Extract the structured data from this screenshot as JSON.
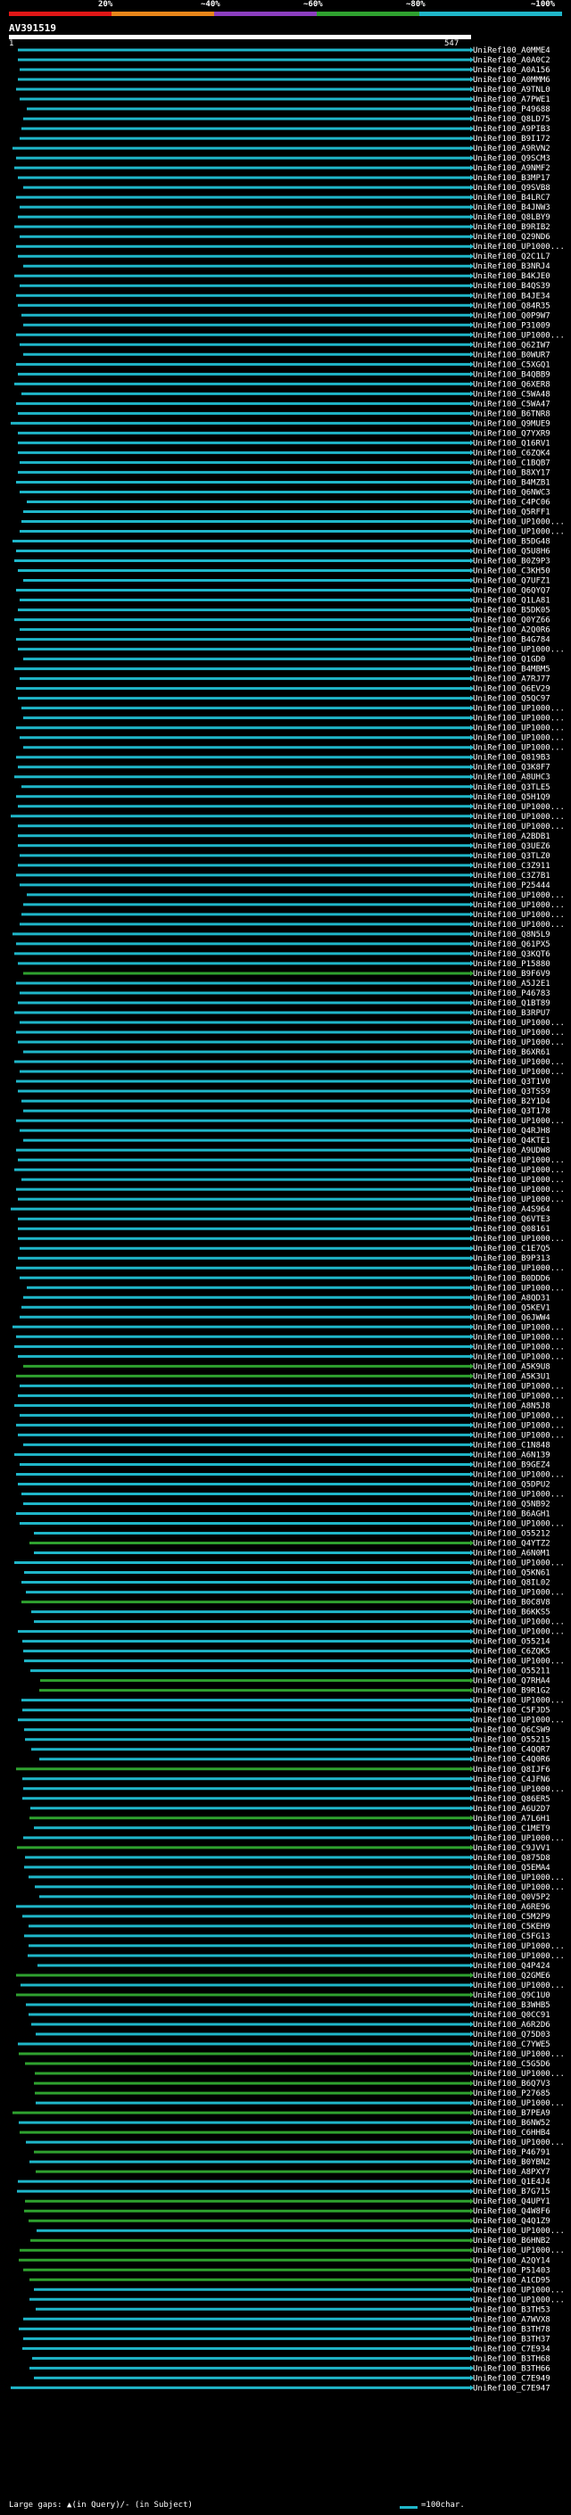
{
  "legend": {
    "labels": [
      "20%",
      "~40%",
      "~60%",
      "~80%",
      "~100%"
    ],
    "colors": [
      "#e01717",
      "#e8861a",
      "#8c3fbf",
      "#2fa12f",
      "#1fb6c9"
    ]
  },
  "query": {
    "id": "AV391519",
    "start": "1",
    "end": "547"
  },
  "footer": {
    "gap_note": "Large gaps: ▲(in Query)/- (in Subject)",
    "scale_text": "=100char."
  },
  "hits": [
    {
      "label": "UniRef100_A0MME4",
      "color": "#1fb6c9"
    },
    {
      "label": "UniRef100_A0A0C2",
      "color": "#1fb6c9"
    },
    {
      "label": "UniRef100_A0A156",
      "color": "#1fb6c9"
    },
    {
      "label": "UniRef100_A0MMM6",
      "color": "#1fb6c9"
    },
    {
      "label": "UniRef100_A9TNL0",
      "color": "#1fb6c9"
    },
    {
      "label": "UniRef100_A7PWE1",
      "color": "#1fb6c9"
    },
    {
      "label": "UniRef100_P49688",
      "color": "#1fb6c9"
    },
    {
      "label": "UniRef100_Q8LD75",
      "color": "#1fb6c9"
    },
    {
      "label": "UniRef100_A9PIB3",
      "color": "#1fb6c9"
    },
    {
      "label": "UniRef100_B9I172",
      "color": "#1fb6c9"
    },
    {
      "label": "UniRef100_A9RVN2",
      "color": "#1fb6c9"
    },
    {
      "label": "UniRef100_Q9SCM3",
      "color": "#1fb6c9"
    },
    {
      "label": "UniRef100_A9NMF2",
      "color": "#1fb6c9"
    },
    {
      "label": "UniRef100_B3MP17",
      "color": "#1fb6c9"
    },
    {
      "label": "UniRef100_Q9SVB8",
      "color": "#1fb6c9"
    },
    {
      "label": "UniRef100_B4LRC7",
      "color": "#1fb6c9"
    },
    {
      "label": "UniRef100_B4JNW3",
      "color": "#1fb6c9"
    },
    {
      "label": "UniRef100_Q8LBY9",
      "color": "#1fb6c9"
    },
    {
      "label": "UniRef100_B9RIB2",
      "color": "#1fb6c9"
    },
    {
      "label": "UniRef100_Q29ND6",
      "color": "#1fb6c9"
    },
    {
      "label": "UniRef100_UP1000...",
      "color": "#1fb6c9"
    },
    {
      "label": "UniRef100_Q2C1L7",
      "color": "#1fb6c9"
    },
    {
      "label": "UniRef100_B3NRJ4",
      "color": "#1fb6c9"
    },
    {
      "label": "UniRef100_B4KJE0",
      "color": "#1fb6c9"
    },
    {
      "label": "UniRef100_B4QS39",
      "color": "#1fb6c9"
    },
    {
      "label": "UniRef100_B4JE34",
      "color": "#1fb6c9"
    },
    {
      "label": "UniRef100_Q84R35",
      "color": "#1fb6c9"
    },
    {
      "label": "UniRef100_Q0P9W7",
      "color": "#1fb6c9"
    },
    {
      "label": "UniRef100_P31009",
      "color": "#1fb6c9"
    },
    {
      "label": "UniRef100_UP1000...",
      "color": "#1fb6c9"
    },
    {
      "label": "UniRef100_Q62IW7",
      "color": "#1fb6c9"
    },
    {
      "label": "UniRef100_B0WUR7",
      "color": "#1fb6c9"
    },
    {
      "label": "UniRef100_C5XGQ1",
      "color": "#1fb6c9"
    },
    {
      "label": "UniRef100_B4QBB9",
      "color": "#1fb6c9"
    },
    {
      "label": "UniRef100_Q6XER8",
      "color": "#1fb6c9"
    },
    {
      "label": "UniRef100_C5WA48",
      "color": "#1fb6c9"
    },
    {
      "label": "UniRef100_C5WA47",
      "color": "#1fb6c9"
    },
    {
      "label": "UniRef100_B6TNR8",
      "color": "#1fb6c9"
    },
    {
      "label": "UniRef100_Q9MUE9",
      "color": "#1fb6c9"
    },
    {
      "label": "UniRef100_Q7YXR9",
      "color": "#1fb6c9"
    },
    {
      "label": "UniRef100_Q16RV1",
      "color": "#1fb6c9"
    },
    {
      "label": "UniRef100_C6ZQK4",
      "color": "#1fb6c9"
    },
    {
      "label": "UniRef100_C1BQB7",
      "color": "#1fb6c9"
    },
    {
      "label": "UniRef100_B8XY17",
      "color": "#1fb6c9"
    },
    {
      "label": "UniRef100_B4MZB1",
      "color": "#1fb6c9"
    },
    {
      "label": "UniRef100_Q6NWC3",
      "color": "#1fb6c9"
    },
    {
      "label": "UniRef100_C4PC06",
      "color": "#1fb6c9"
    },
    {
      "label": "UniRef100_Q5RFF1",
      "color": "#1fb6c9"
    },
    {
      "label": "UniRef100_UP1000...",
      "color": "#1fb6c9"
    },
    {
      "label": "UniRef100_UP1000...",
      "color": "#1fb6c9"
    },
    {
      "label": "UniRef100_B5DG48",
      "color": "#1fb6c9"
    },
    {
      "label": "UniRef100_Q5U8H6",
      "color": "#1fb6c9"
    },
    {
      "label": "UniRef100_B0Z9P3",
      "color": "#1fb6c9"
    },
    {
      "label": "UniRef100_C3KH50",
      "color": "#1fb6c9"
    },
    {
      "label": "UniRef100_Q7UFZ1",
      "color": "#1fb6c9"
    },
    {
      "label": "UniRef100_Q6QYQ7",
      "color": "#1fb6c9"
    },
    {
      "label": "UniRef100_Q1LA81",
      "color": "#1fb6c9"
    },
    {
      "label": "UniRef100_B5DK05",
      "color": "#1fb6c9"
    },
    {
      "label": "UniRef100_Q0YZ66",
      "color": "#1fb6c9"
    },
    {
      "label": "UniRef100_A2Q0R6",
      "color": "#1fb6c9"
    },
    {
      "label": "UniRef100_B4G784",
      "color": "#1fb6c9"
    },
    {
      "label": "UniRef100_UP1000...",
      "color": "#1fb6c9"
    },
    {
      "label": "UniRef100_Q1GD0",
      "color": "#1fb6c9"
    },
    {
      "label": "UniRef100_B4MBM5",
      "color": "#1fb6c9"
    },
    {
      "label": "UniRef100_A7RJ77",
      "color": "#1fb6c9"
    },
    {
      "label": "UniRef100_Q6EV29",
      "color": "#1fb6c9"
    },
    {
      "label": "UniRef100_Q5QC97",
      "color": "#1fb6c9"
    },
    {
      "label": "UniRef100_UP1000...",
      "color": "#1fb6c9"
    },
    {
      "label": "UniRef100_UP1000...",
      "color": "#1fb6c9"
    },
    {
      "label": "UniRef100_UP1000...",
      "color": "#1fb6c9"
    },
    {
      "label": "UniRef100_UP1000...",
      "color": "#1fb6c9"
    },
    {
      "label": "UniRef100_UP1000...",
      "color": "#1fb6c9"
    },
    {
      "label": "UniRef100_Q819B3",
      "color": "#1fb6c9"
    },
    {
      "label": "UniRef100_Q3K8F7",
      "color": "#1fb6c9"
    },
    {
      "label": "UniRef100_A8UHC3",
      "color": "#1fb6c9"
    },
    {
      "label": "UniRef100_Q3TLE5",
      "color": "#1fb6c9"
    },
    {
      "label": "UniRef100_Q5H1Q9",
      "color": "#1fb6c9"
    },
    {
      "label": "UniRef100_UP1000...",
      "color": "#1fb6c9"
    },
    {
      "label": "UniRef100_UP1000...",
      "color": "#1fb6c9"
    },
    {
      "label": "UniRef100_UP1000...",
      "color": "#1fb6c9"
    },
    {
      "label": "UniRef100_A2BDB1",
      "color": "#1fb6c9"
    },
    {
      "label": "UniRef100_Q3UEZ6",
      "color": "#1fb6c9"
    },
    {
      "label": "UniRef100_Q3TLZ0",
      "color": "#1fb6c9"
    },
    {
      "label": "UniRef100_C3Z911",
      "color": "#1fb6c9"
    },
    {
      "label": "UniRef100_C3Z7B1",
      "color": "#1fb6c9"
    },
    {
      "label": "UniRef100_P25444",
      "color": "#1fb6c9"
    },
    {
      "label": "UniRef100_UP1000...",
      "color": "#1fb6c9"
    },
    {
      "label": "UniRef100_UP1000...",
      "color": "#1fb6c9"
    },
    {
      "label": "UniRef100_UP1000...",
      "color": "#1fb6c9"
    },
    {
      "label": "UniRef100_UP1000...",
      "color": "#1fb6c9"
    },
    {
      "label": "UniRef100_Q8N5L9",
      "color": "#1fb6c9"
    },
    {
      "label": "UniRef100_Q61PX5",
      "color": "#1fb6c9"
    },
    {
      "label": "UniRef100_Q3KQT6",
      "color": "#1fb6c9"
    },
    {
      "label": "UniRef100_P15880",
      "color": "#1fb6c9"
    },
    {
      "label": "UniRef100_B9F6V9",
      "color": "#2fa12f"
    },
    {
      "label": "UniRef100_A5J2E1",
      "color": "#1fb6c9"
    },
    {
      "label": "UniRef100_P46783",
      "color": "#1fb6c9"
    },
    {
      "label": "UniRef100_Q1BT89",
      "color": "#1fb6c9"
    },
    {
      "label": "UniRef100_B3RPU7",
      "color": "#1fb6c9"
    },
    {
      "label": "UniRef100_UP1000...",
      "color": "#1fb6c9"
    },
    {
      "label": "UniRef100_UP1000...",
      "color": "#1fb6c9"
    },
    {
      "label": "UniRef100_UP1000...",
      "color": "#1fb6c9"
    },
    {
      "label": "UniRef100_B6XR61",
      "color": "#1fb6c9"
    },
    {
      "label": "UniRef100_UP1000...",
      "color": "#1fb6c9"
    },
    {
      "label": "UniRef100_UP1000...",
      "color": "#1fb6c9"
    },
    {
      "label": "UniRef100_Q3T1V0",
      "color": "#1fb6c9"
    },
    {
      "label": "UniRef100_Q3TSS9",
      "color": "#1fb6c9"
    },
    {
      "label": "UniRef100_B2Y1D4",
      "color": "#1fb6c9"
    },
    {
      "label": "UniRef100_Q3T178",
      "color": "#1fb6c9"
    },
    {
      "label": "UniRef100_UP1000...",
      "color": "#1fb6c9"
    },
    {
      "label": "UniRef100_Q4RJH8",
      "color": "#1fb6c9"
    },
    {
      "label": "UniRef100_Q4KTE1",
      "color": "#1fb6c9"
    },
    {
      "label": "UniRef100_A9UDW8",
      "color": "#1fb6c9"
    },
    {
      "label": "UniRef100_UP1000...",
      "color": "#1fb6c9"
    },
    {
      "label": "UniRef100_UP1000...",
      "color": "#1fb6c9"
    },
    {
      "label": "UniRef100_UP1000...",
      "color": "#1fb6c9"
    },
    {
      "label": "UniRef100_UP1000...",
      "color": "#1fb6c9"
    },
    {
      "label": "UniRef100_UP1000...",
      "color": "#1fb6c9"
    },
    {
      "label": "UniRef100_A4S964",
      "color": "#1fb6c9"
    },
    {
      "label": "UniRef100_Q6VTE3",
      "color": "#1fb6c9"
    },
    {
      "label": "UniRef100_Q08161",
      "color": "#1fb6c9"
    },
    {
      "label": "UniRef100_UP1000...",
      "color": "#1fb6c9"
    },
    {
      "label": "UniRef100_C1E7Q5",
      "color": "#1fb6c9"
    },
    {
      "label": "UniRef100_B9P313",
      "color": "#1fb6c9"
    },
    {
      "label": "UniRef100_UP1000...",
      "color": "#1fb6c9"
    },
    {
      "label": "UniRef100_B0DDD6",
      "color": "#1fb6c9"
    },
    {
      "label": "UniRef100_UP1000...",
      "color": "#1fb6c9"
    },
    {
      "label": "UniRef100_A8QD31",
      "color": "#1fb6c9"
    },
    {
      "label": "UniRef100_Q5KEV1",
      "color": "#1fb6c9"
    },
    {
      "label": "UniRef100_Q6JWW4",
      "color": "#1fb6c9"
    },
    {
      "label": "UniRef100_UP1000...",
      "color": "#1fb6c9"
    },
    {
      "label": "UniRef100_UP1000...",
      "color": "#1fb6c9"
    },
    {
      "label": "UniRef100_UP1000...",
      "color": "#1fb6c9"
    },
    {
      "label": "UniRef100_UP1000...",
      "color": "#1fb6c9"
    },
    {
      "label": "UniRef100_A5K9U8",
      "color": "#2fa12f"
    },
    {
      "label": "UniRef100_A5K3U1",
      "color": "#2fa12f"
    },
    {
      "label": "UniRef100_UP1000...",
      "color": "#1fb6c9"
    },
    {
      "label": "UniRef100_UP1000...",
      "color": "#1fb6c9"
    },
    {
      "label": "UniRef100_A8N5J8",
      "color": "#1fb6c9"
    },
    {
      "label": "UniRef100_UP1000...",
      "color": "#1fb6c9"
    },
    {
      "label": "UniRef100_UP1000...",
      "color": "#1fb6c9"
    },
    {
      "label": "UniRef100_UP1000...",
      "color": "#1fb6c9"
    },
    {
      "label": "UniRef100_C1N848",
      "color": "#1fb6c9"
    },
    {
      "label": "UniRef100_A6N139",
      "color": "#1fb6c9"
    },
    {
      "label": "UniRef100_B9GEZ4",
      "color": "#1fb6c9"
    },
    {
      "label": "UniRef100_UP1000...",
      "color": "#1fb6c9"
    },
    {
      "label": "UniRef100_Q5DPU2",
      "color": "#1fb6c9"
    },
    {
      "label": "UniRef100_UP1000...",
      "color": "#1fb6c9"
    },
    {
      "label": "UniRef100_Q5NB92",
      "color": "#1fb6c9"
    },
    {
      "label": "UniRef100_B6AGH1",
      "color": "#1fb6c9"
    },
    {
      "label": "UniRef100_UP1000...",
      "color": "#1fb6c9"
    },
    {
      "label": "UniRef100_O55212",
      "color": "#1fb6c9"
    },
    {
      "label": "UniRef100_Q4YTZ2",
      "color": "#2fa12f"
    },
    {
      "label": "UniRef100_A6N0M1",
      "color": "#1fb6c9"
    },
    {
      "label": "UniRef100_UP1000...",
      "color": "#1fb6c9"
    },
    {
      "label": "UniRef100_Q5KN61",
      "color": "#1fb6c9"
    },
    {
      "label": "UniRef100_Q8IL02",
      "color": "#1fb6c9"
    },
    {
      "label": "UniRef100_UP1000...",
      "color": "#1fb6c9"
    },
    {
      "label": "UniRef100_B0C8V8",
      "color": "#2fa12f"
    },
    {
      "label": "UniRef100_B6KKS5",
      "color": "#1fb6c9"
    },
    {
      "label": "UniRef100_UP1000...",
      "color": "#1fb6c9"
    },
    {
      "label": "UniRef100_UP1000...",
      "color": "#1fb6c9"
    },
    {
      "label": "UniRef100_O55214",
      "color": "#1fb6c9"
    },
    {
      "label": "UniRef100_C6ZQK5",
      "color": "#1fb6c9"
    },
    {
      "label": "UniRef100_UP1000...",
      "color": "#1fb6c9"
    },
    {
      "label": "UniRef100_O55211",
      "color": "#1fb6c9"
    },
    {
      "label": "UniRef100_Q7RHA4",
      "color": "#2fa12f"
    },
    {
      "label": "UniRef100_B9R1G2",
      "color": "#2fa12f"
    },
    {
      "label": "UniRef100_UP1000...",
      "color": "#1fb6c9"
    },
    {
      "label": "UniRef100_C5FJD5",
      "color": "#1fb6c9"
    },
    {
      "label": "UniRef100_UP1000...",
      "color": "#1fb6c9"
    },
    {
      "label": "UniRef100_Q6CSW9",
      "color": "#1fb6c9"
    },
    {
      "label": "UniRef100_O55215",
      "color": "#1fb6c9"
    },
    {
      "label": "UniRef100_C4QQR7",
      "color": "#1fb6c9"
    },
    {
      "label": "UniRef100_C4Q0R6",
      "color": "#1fb6c9"
    },
    {
      "label": "UniRef100_Q8IJF6",
      "color": "#2fa12f"
    },
    {
      "label": "UniRef100_C4JFN6",
      "color": "#1fb6c9"
    },
    {
      "label": "UniRef100_UP1000...",
      "color": "#1fb6c9"
    },
    {
      "label": "UniRef100_Q86ER5",
      "color": "#1fb6c9"
    },
    {
      "label": "UniRef100_A6U2D7",
      "color": "#1fb6c9"
    },
    {
      "label": "UniRef100_A7L6H1",
      "color": "#2fa12f"
    },
    {
      "label": "UniRef100_C1MET9",
      "color": "#1fb6c9"
    },
    {
      "label": "UniRef100_UP1000...",
      "color": "#1fb6c9"
    },
    {
      "label": "UniRef100_C9JVV1",
      "color": "#2fa12f"
    },
    {
      "label": "UniRef100_Q875D8",
      "color": "#1fb6c9"
    },
    {
      "label": "UniRef100_Q5EMA4",
      "color": "#1fb6c9"
    },
    {
      "label": "UniRef100_UP1000...",
      "color": "#1fb6c9"
    },
    {
      "label": "UniRef100_UP1000...",
      "color": "#1fb6c9"
    },
    {
      "label": "UniRef100_Q0V5P2",
      "color": "#1fb6c9"
    },
    {
      "label": "UniRef100_A6RE96",
      "color": "#1fb6c9"
    },
    {
      "label": "UniRef100_C5M2P9",
      "color": "#1fb6c9"
    },
    {
      "label": "UniRef100_C5KEH9",
      "color": "#1fb6c9"
    },
    {
      "label": "UniRef100_C5FG13",
      "color": "#1fb6c9"
    },
    {
      "label": "UniRef100_UP1000...",
      "color": "#1fb6c9"
    },
    {
      "label": "UniRef100_UP1000...",
      "color": "#1fb6c9"
    },
    {
      "label": "UniRef100_Q4P424",
      "color": "#1fb6c9"
    },
    {
      "label": "UniRef100_Q2GME6",
      "color": "#2fa12f"
    },
    {
      "label": "UniRef100_UP1000...",
      "color": "#1fb6c9"
    },
    {
      "label": "UniRef100_Q9C1U0",
      "color": "#2fa12f"
    },
    {
      "label": "UniRef100_B3WHB5",
      "color": "#1fb6c9"
    },
    {
      "label": "UniRef100_Q0CC91",
      "color": "#1fb6c9"
    },
    {
      "label": "UniRef100_A6R2D6",
      "color": "#1fb6c9"
    },
    {
      "label": "UniRef100_Q75D03",
      "color": "#1fb6c9"
    },
    {
      "label": "UniRef100_C7YWE5",
      "color": "#1fb6c9"
    },
    {
      "label": "UniRef100_UP1000...",
      "color": "#2fa12f"
    },
    {
      "label": "UniRef100_C5G5D6",
      "color": "#2fa12f"
    },
    {
      "label": "UniRef100_UP1000...",
      "color": "#2fa12f"
    },
    {
      "label": "UniRef100_B6Q7V3",
      "color": "#2fa12f"
    },
    {
      "label": "UniRef100_P27685",
      "color": "#2fa12f"
    },
    {
      "label": "UniRef100_UP1000...",
      "color": "#1fb6c9"
    },
    {
      "label": "UniRef100_B7PEA9",
      "color": "#2fa12f"
    },
    {
      "label": "UniRef100_B6NW52",
      "color": "#1fb6c9"
    },
    {
      "label": "UniRef100_C6HHB4",
      "color": "#2fa12f"
    },
    {
      "label": "UniRef100_UP1000...",
      "color": "#1fb6c9"
    },
    {
      "label": "UniRef100_P46791",
      "color": "#2fa12f"
    },
    {
      "label": "UniRef100_B0YBN2",
      "color": "#1fb6c9"
    },
    {
      "label": "UniRef100_A8PXY7",
      "color": "#2fa12f"
    },
    {
      "label": "UniRef100_Q1E4J4",
      "color": "#1fb6c9"
    },
    {
      "label": "UniRef100_B7G715",
      "color": "#1fb6c9"
    },
    {
      "label": "UniRef100_Q4UPY1",
      "color": "#2fa12f"
    },
    {
      "label": "UniRef100_Q4W8F6",
      "color": "#2fa12f"
    },
    {
      "label": "UniRef100_Q4Q1Z9",
      "color": "#2fa12f"
    },
    {
      "label": "UniRef100_UP1000...",
      "color": "#1fb6c9"
    },
    {
      "label": "UniRef100_B6HNB2",
      "color": "#2fa12f"
    },
    {
      "label": "UniRef100_UP1000...",
      "color": "#2fa12f"
    },
    {
      "label": "UniRef100_A2QY14",
      "color": "#2fa12f"
    },
    {
      "label": "UniRef100_P51403",
      "color": "#2fa12f"
    },
    {
      "label": "UniRef100_A1CD95",
      "color": "#2fa12f"
    },
    {
      "label": "UniRef100_UP1000...",
      "color": "#1fb6c9"
    },
    {
      "label": "UniRef100_UP1000...",
      "color": "#1fb6c9"
    },
    {
      "label": "UniRef100_B3TH53",
      "color": "#1fb6c9"
    },
    {
      "label": "UniRef100_A7WVX8",
      "color": "#1fb6c9"
    },
    {
      "label": "UniRef100_B3TH78",
      "color": "#1fb6c9"
    },
    {
      "label": "UniRef100_B3TH37",
      "color": "#1fb6c9"
    },
    {
      "label": "UniRef100_C7E934",
      "color": "#1fb6c9"
    },
    {
      "label": "UniRef100_B3TH68",
      "color": "#1fb6c9"
    },
    {
      "label": "UniRef100_B3TH66",
      "color": "#1fb6c9"
    },
    {
      "label": "UniRef100_C7E949",
      "color": "#1fb6c9"
    },
    {
      "label": "UniRef100_C7E947",
      "color": "#1fb6c9"
    }
  ]
}
